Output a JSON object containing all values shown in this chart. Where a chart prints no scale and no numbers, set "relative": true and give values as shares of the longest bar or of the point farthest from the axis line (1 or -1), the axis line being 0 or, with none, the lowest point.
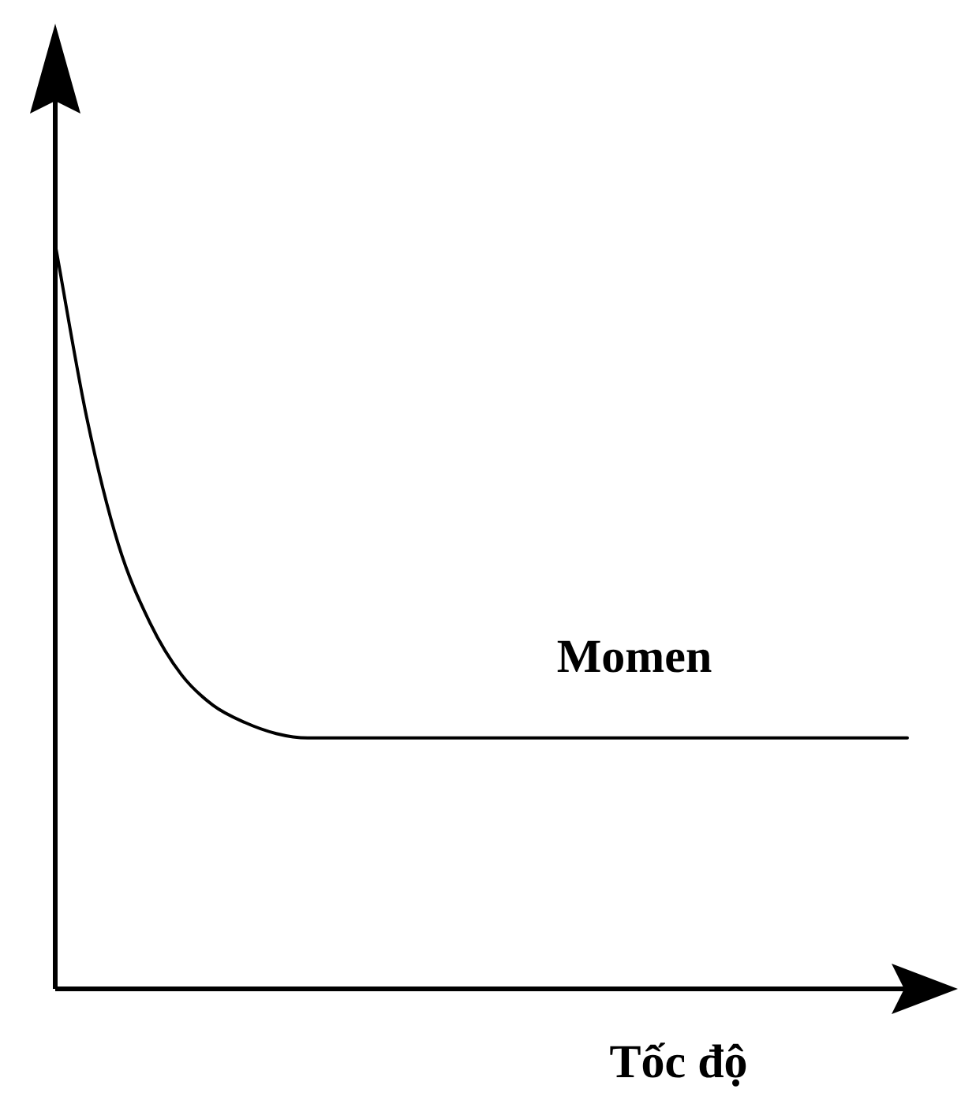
{
  "chart_data": {
    "type": "line",
    "xlabel": "Tốc độ",
    "relative": true,
    "marker": "none",
    "line_style": "solid",
    "legend": false,
    "categories": [
      null,
      null,
      null,
      null,
      null,
      null,
      null,
      null,
      null,
      null,
      null,
      null,
      null,
      null,
      null,
      null,
      null,
      null,
      null,
      null,
      null,
      null,
      null,
      null,
      null,
      null,
      null,
      null,
      null
    ],
    "series": [
      {
        "name": "Momen",
        "color": "#000000",
        "values": [
          1,
          0.767,
          0.597,
          0.492,
          0.422,
          0.381,
          0.358,
          0.343,
          0.337,
          0.337,
          0.337,
          0.337,
          0.337,
          0.337,
          0.337,
          0.337,
          0.337,
          0.337,
          0.337,
          0.337,
          0.337,
          0.337,
          0.337,
          0.337,
          0.337,
          0.337,
          0.337,
          0.337,
          null
        ]
      }
    ]
  }
}
